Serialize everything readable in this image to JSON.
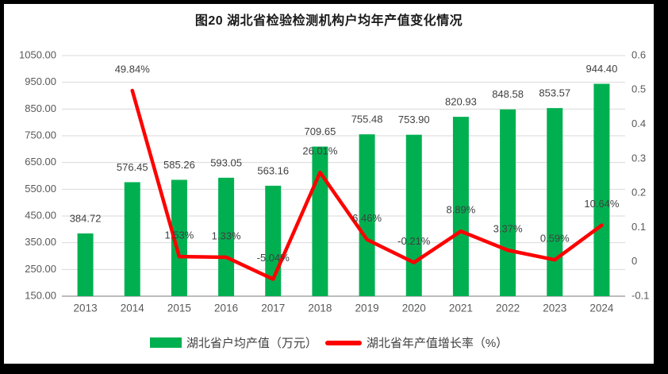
{
  "title": "图20 湖北省检验检测机构户均年产值变化情况",
  "chart_data": {
    "type": "combo-bar-line",
    "categories": [
      "2013",
      "2014",
      "2015",
      "2016",
      "2017",
      "2018",
      "2019",
      "2020",
      "2021",
      "2022",
      "2023",
      "2024"
    ],
    "series": [
      {
        "name": "湖北省户均产值（万元）",
        "type": "bar",
        "axis": "left",
        "color": "#00B050",
        "values": [
          384.72,
          576.45,
          585.26,
          593.05,
          563.16,
          709.65,
          755.48,
          753.9,
          820.93,
          848.58,
          853.57,
          944.4
        ],
        "data_labels": [
          "384.72",
          "576.45",
          "585.26",
          "593.05",
          "563.16",
          "709.65",
          "755.48",
          "753.90",
          "820.93",
          "848.58",
          "853.57",
          "944.40"
        ]
      },
      {
        "name": "湖北省年产值增长率（%）",
        "type": "line",
        "axis": "right",
        "color": "#FF0000",
        "values": [
          null,
          0.4984,
          0.0153,
          0.0133,
          -0.0504,
          0.2601,
          0.0646,
          -0.0021,
          0.0889,
          0.0337,
          0.0059,
          0.1064
        ],
        "data_labels": [
          null,
          "49.84%",
          "1.53%",
          "1.33%",
          "-5.04%",
          "26.01%",
          "6.46%",
          "-0.21%",
          "8.89%",
          "3.37%",
          "0.59%",
          "10.64%"
        ]
      }
    ],
    "left_axis": {
      "min": 150,
      "max": 1050,
      "step": 100,
      "tick_labels": [
        "1050.00",
        "950.00",
        "850.00",
        "750.00",
        "650.00",
        "550.00",
        "450.00",
        "350.00",
        "250.00",
        "150.00"
      ]
    },
    "right_axis": {
      "min": -0.1,
      "max": 0.6,
      "step": 0.1,
      "tick_labels": [
        "0.6",
        "0.5",
        "0.4",
        "0.3",
        "0.2",
        "0.1",
        "0",
        "-0.1"
      ]
    },
    "grid": true,
    "legend_position": "bottom"
  }
}
